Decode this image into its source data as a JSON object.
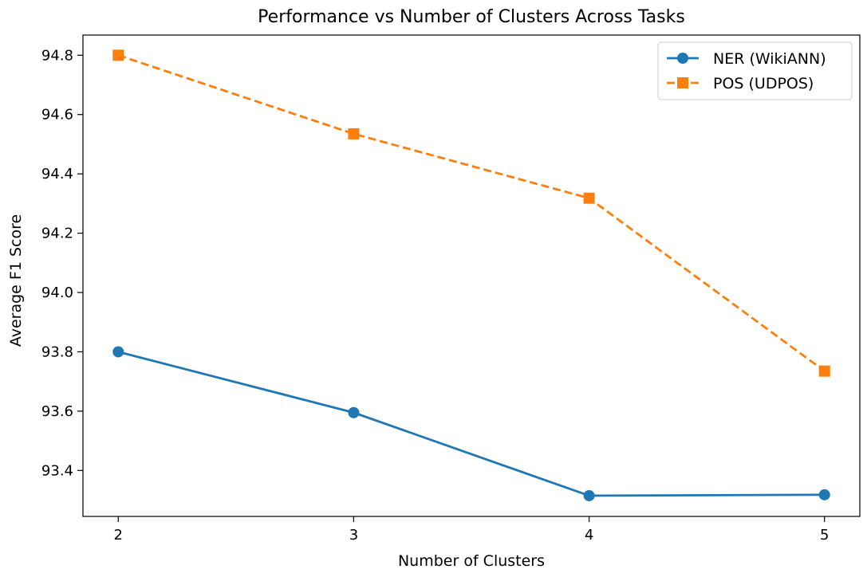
{
  "chart_data": {
    "type": "line",
    "title": "Performance vs Number of Clusters Across Tasks",
    "xlabel": "Number of Clusters",
    "ylabel": "Average F1 Score",
    "x": [
      2,
      3,
      4,
      5
    ],
    "x_tick_labels": [
      "2",
      "3",
      "4",
      "5"
    ],
    "y_ticks": [
      93.4,
      93.6,
      93.8,
      94.0,
      94.2,
      94.4,
      94.6,
      94.8
    ],
    "y_tick_labels": [
      "93.4",
      "93.6",
      "93.8",
      "94.0",
      "94.2",
      "94.4",
      "94.6",
      "94.8"
    ],
    "xlim": [
      1.85,
      5.15
    ],
    "ylim": [
      93.245,
      94.868
    ],
    "grid": false,
    "legend_position": "top-right",
    "series": [
      {
        "name": "NER (WikiANN)",
        "values": [
          93.8,
          93.595,
          93.315,
          93.318
        ],
        "color": "#1f77b4",
        "marker": "circle",
        "line_style": "solid"
      },
      {
        "name": "POS (UDPOS)",
        "values": [
          94.8,
          94.535,
          94.318,
          93.735
        ],
        "color": "#ff7f0e",
        "marker": "square",
        "line_style": "dashed"
      }
    ]
  }
}
